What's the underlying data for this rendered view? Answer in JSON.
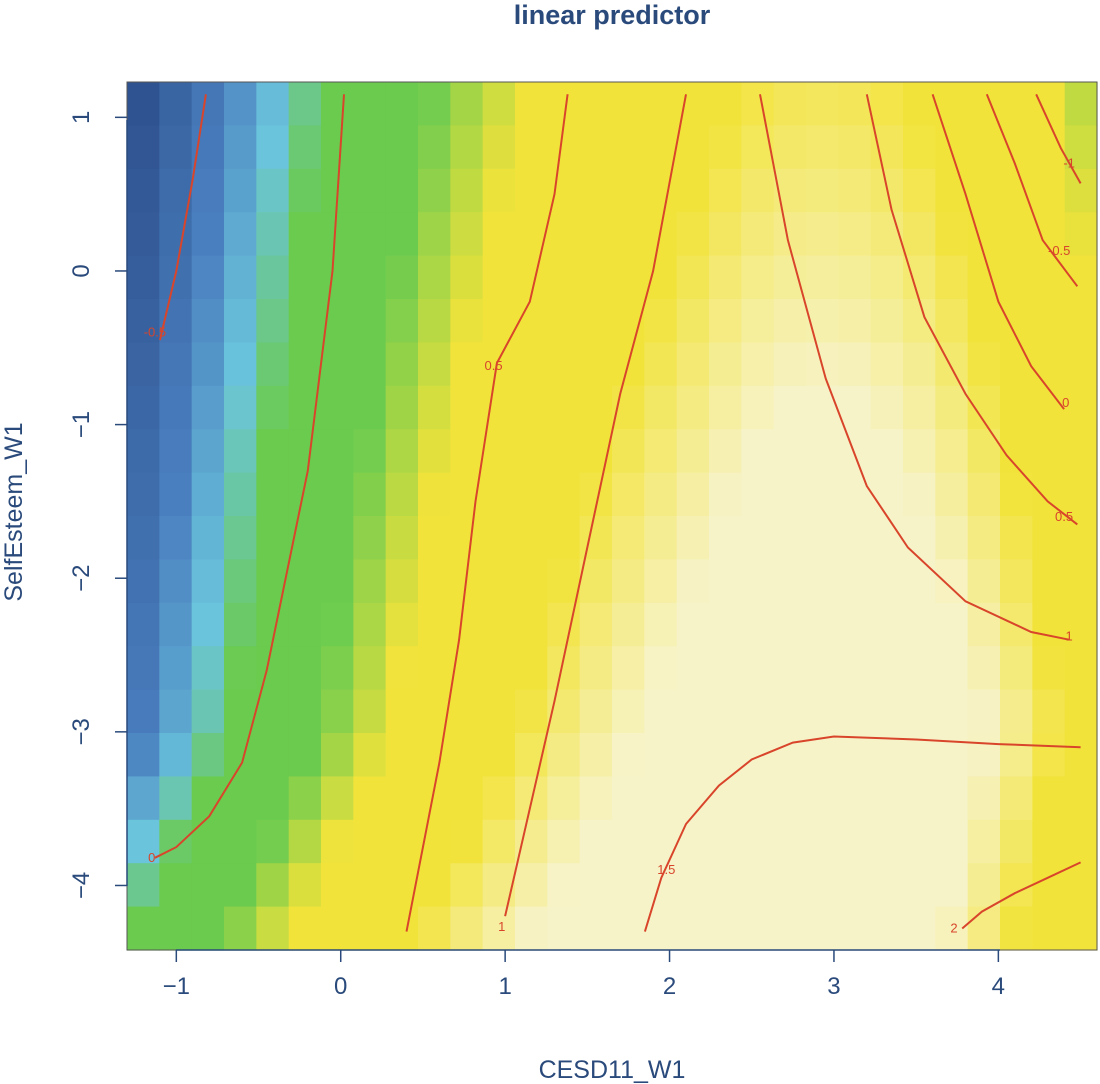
{
  "chart_data": {
    "type": "heatmap",
    "title": "linear predictor",
    "xlabel": "CESD11_W1",
    "ylabel": "SelfEsteem_W1",
    "xlim": [
      -1.3,
      4.6
    ],
    "ylim": [
      -4.42,
      1.23
    ],
    "x_ticks": [
      -1,
      0,
      1,
      2,
      3,
      4
    ],
    "y_ticks": [
      -4,
      -3,
      -2,
      -1,
      0,
      1
    ],
    "x_tick_labels": [
      "−1",
      "0",
      "1",
      "2",
      "3",
      "4"
    ],
    "y_tick_labels": [
      "−4",
      "−3",
      "−2",
      "−1",
      "0",
      "1"
    ],
    "grid": false,
    "legend": "none",
    "colors": {
      "low": "#2d4f8c",
      "mid_low": "#6ac4dc",
      "mid": "#6bcb4f",
      "high": "#f2e33b",
      "top": "#f7f3c8",
      "contour": "#d8452b",
      "axis_text": "#2a4a7b"
    },
    "surface_model": "z = 0.95 + 0.5*x - 0.4*max(0,x-2.3)^2 - 0.2*max(0,1.7-x)^2 - 0.18*y - 0.17*max(0,-3-y)*(x-1.8)",
    "contours": [
      {
        "level": "-1",
        "label": "-1",
        "points": [
          [
            4.23,
            1.15
          ],
          [
            4.38,
            0.8
          ],
          [
            4.5,
            0.57
          ]
        ],
        "label_at": [
          4.43,
          0.7
        ]
      },
      {
        "level": "-0.5",
        "label": "-0.5",
        "points": [
          [
            -0.82,
            1.15
          ],
          [
            -0.9,
            0.6
          ],
          [
            -1.0,
            0.0
          ],
          [
            -1.1,
            -0.45
          ]
        ],
        "label_at": [
          -1.13,
          -0.4
        ]
      },
      {
        "level": "-0.5",
        "label": "-0.5",
        "points": [
          [
            3.93,
            1.15
          ],
          [
            4.1,
            0.7
          ],
          [
            4.27,
            0.2
          ],
          [
            4.48,
            -0.1
          ]
        ],
        "label_at": [
          4.37,
          0.13
        ]
      },
      {
        "level": "0",
        "label": "0",
        "points": [
          [
            0.02,
            1.15
          ],
          [
            -0.05,
            0.0
          ],
          [
            -0.2,
            -1.3
          ],
          [
            -0.45,
            -2.6
          ],
          [
            -0.6,
            -3.2
          ],
          [
            -0.8,
            -3.55
          ],
          [
            -1.0,
            -3.75
          ],
          [
            -1.13,
            -3.82
          ]
        ],
        "label_at": [
          -1.15,
          -3.82
        ]
      },
      {
        "level": "0",
        "label": "0",
        "points": [
          [
            3.6,
            1.15
          ],
          [
            3.8,
            0.5
          ],
          [
            4.0,
            -0.2
          ],
          [
            4.2,
            -0.62
          ],
          [
            4.4,
            -0.9
          ]
        ],
        "label_at": [
          4.41,
          -0.86
        ]
      },
      {
        "level": "0.5",
        "label": "0.5",
        "points": [
          [
            1.38,
            1.15
          ],
          [
            1.3,
            0.5
          ],
          [
            1.15,
            -0.2
          ],
          [
            0.95,
            -0.6
          ],
          [
            0.82,
            -1.5
          ],
          [
            0.72,
            -2.4
          ],
          [
            0.6,
            -3.2
          ],
          [
            0.4,
            -4.3
          ]
        ],
        "label_at": [
          0.93,
          -0.62
        ]
      },
      {
        "level": "0.5",
        "label": "0.5",
        "points": [
          [
            3.2,
            1.15
          ],
          [
            3.35,
            0.4
          ],
          [
            3.55,
            -0.3
          ],
          [
            3.8,
            -0.8
          ],
          [
            4.05,
            -1.2
          ],
          [
            4.3,
            -1.5
          ],
          [
            4.48,
            -1.65
          ]
        ],
        "label_at": [
          4.4,
          -1.6
        ]
      },
      {
        "level": "1",
        "label": "1",
        "points": [
          [
            2.1,
            1.15
          ],
          [
            1.9,
            0.0
          ],
          [
            1.7,
            -0.8
          ],
          [
            1.5,
            -1.8
          ],
          [
            1.3,
            -2.8
          ],
          [
            1.15,
            -3.5
          ],
          [
            1.0,
            -4.2
          ]
        ],
        "label_at": [
          0.98,
          -4.27
        ]
      },
      {
        "level": "1",
        "label": "1",
        "points": [
          [
            2.55,
            1.15
          ],
          [
            2.72,
            0.2
          ],
          [
            2.95,
            -0.7
          ],
          [
            3.2,
            -1.4
          ],
          [
            3.45,
            -1.8
          ],
          [
            3.8,
            -2.15
          ],
          [
            4.2,
            -2.35
          ],
          [
            4.43,
            -2.4
          ]
        ],
        "label_at": [
          4.43,
          -2.38
        ]
      },
      {
        "level": "1.5",
        "label": "1.5",
        "points": [
          [
            1.85,
            -4.3
          ],
          [
            1.95,
            -3.95
          ],
          [
            2.1,
            -3.6
          ],
          [
            2.3,
            -3.35
          ],
          [
            2.5,
            -3.18
          ],
          [
            2.75,
            -3.07
          ],
          [
            3.0,
            -3.03
          ],
          [
            3.5,
            -3.05
          ],
          [
            4.0,
            -3.08
          ],
          [
            4.5,
            -3.1
          ]
        ],
        "label_at": [
          1.98,
          -3.9
        ]
      },
      {
        "level": "2",
        "label": "2",
        "points": [
          [
            3.78,
            -4.28
          ],
          [
            3.9,
            -4.17
          ],
          [
            4.1,
            -4.05
          ],
          [
            4.3,
            -3.95
          ],
          [
            4.5,
            -3.85
          ]
        ],
        "label_at": [
          3.73,
          -4.28
        ]
      }
    ]
  }
}
